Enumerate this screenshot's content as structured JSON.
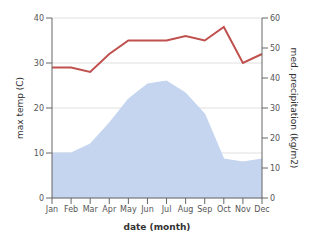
{
  "chart_data": {
    "type": "line",
    "categories": [
      "Jan",
      "Feb",
      "Mar",
      "Apr",
      "May",
      "Jun",
      "Jul",
      "Aug",
      "Sep",
      "Oct",
      "Nov",
      "Dec"
    ],
    "series": [
      {
        "type": "area",
        "axis": "y2",
        "color": "#c5d5f0",
        "values": [
          15,
          15,
          18,
          25,
          33,
          38,
          39,
          35,
          28,
          13,
          12,
          13
        ]
      },
      {
        "type": "line",
        "color": "#c0504d",
        "values": [
          29,
          29,
          28,
          32,
          35,
          35,
          35,
          36,
          35,
          38,
          30,
          32
        ]
      }
    ],
    "xlabel": "date (month)",
    "ylabel": "max temp (C)",
    "y2label": "med. precipitation (kg/m2)",
    "ylim": [
      0,
      40
    ],
    "yticks": [
      0,
      10,
      20,
      30,
      40
    ],
    "y2lim": [
      0,
      60
    ],
    "y2ticks": [
      0,
      10,
      20,
      30,
      40,
      50,
      60
    ],
    "grid": true
  }
}
